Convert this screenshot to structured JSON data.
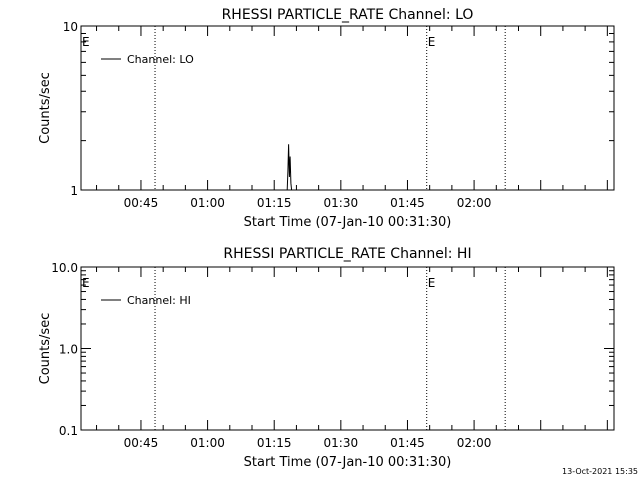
{
  "chart_data": [
    {
      "type": "line",
      "title": "RHESSI PARTICLE_RATE Channel: LO",
      "xlabel": "Start Time (07-Jan-10 00:31:30)",
      "ylabel": "Counts/sec",
      "yscale": "log",
      "ylim": [
        1,
        10
      ],
      "xlim": [
        "00:31:30",
        "02:31:30"
      ],
      "y_tick_labels": [
        "1",
        "10"
      ],
      "x_tick_labels": [
        "00:45",
        "01:00",
        "01:15",
        "01:30",
        "01:45",
        "02:00"
      ],
      "legend": "top-left",
      "series": [
        {
          "name": "Channel: LO",
          "x": [
            "01:17:55",
            "01:18:05",
            "01:18:15",
            "01:18:25",
            "01:18:35",
            "01:18:45",
            "01:18:55",
            "01:19:05",
            "01:19:15"
          ],
          "y": [
            1.0,
            1.3,
            1.9,
            1.2,
            1.6,
            1.1,
            1.0,
            1.0,
            1.0
          ]
        }
      ],
      "event_lines": [
        {
          "x": "00:48:10",
          "label": ""
        },
        {
          "x": "01:49:20",
          "label": "E"
        },
        {
          "x": "02:07:00",
          "label": ""
        }
      ],
      "start_marker": "E"
    },
    {
      "type": "line",
      "title": "RHESSI PARTICLE_RATE Channel: HI",
      "xlabel": "Start Time (07-Jan-10 00:31:30)",
      "ylabel": "Counts/sec",
      "yscale": "log",
      "ylim": [
        0.1,
        10
      ],
      "xlim": [
        "00:31:30",
        "02:31:30"
      ],
      "y_tick_labels": [
        "0.1",
        "1.0",
        "10.0"
      ],
      "x_tick_labels": [
        "00:45",
        "01:00",
        "01:15",
        "01:30",
        "01:45",
        "02:00"
      ],
      "legend": "top-left",
      "series": [
        {
          "name": "Channel: HI",
          "x": [],
          "y": []
        }
      ],
      "event_lines": [
        {
          "x": "00:48:10",
          "label": ""
        },
        {
          "x": "01:49:20",
          "label": "E"
        },
        {
          "x": "02:07:00",
          "label": ""
        }
      ],
      "start_marker": "E"
    }
  ],
  "timestamp": "13-Oct-2021 15:35"
}
